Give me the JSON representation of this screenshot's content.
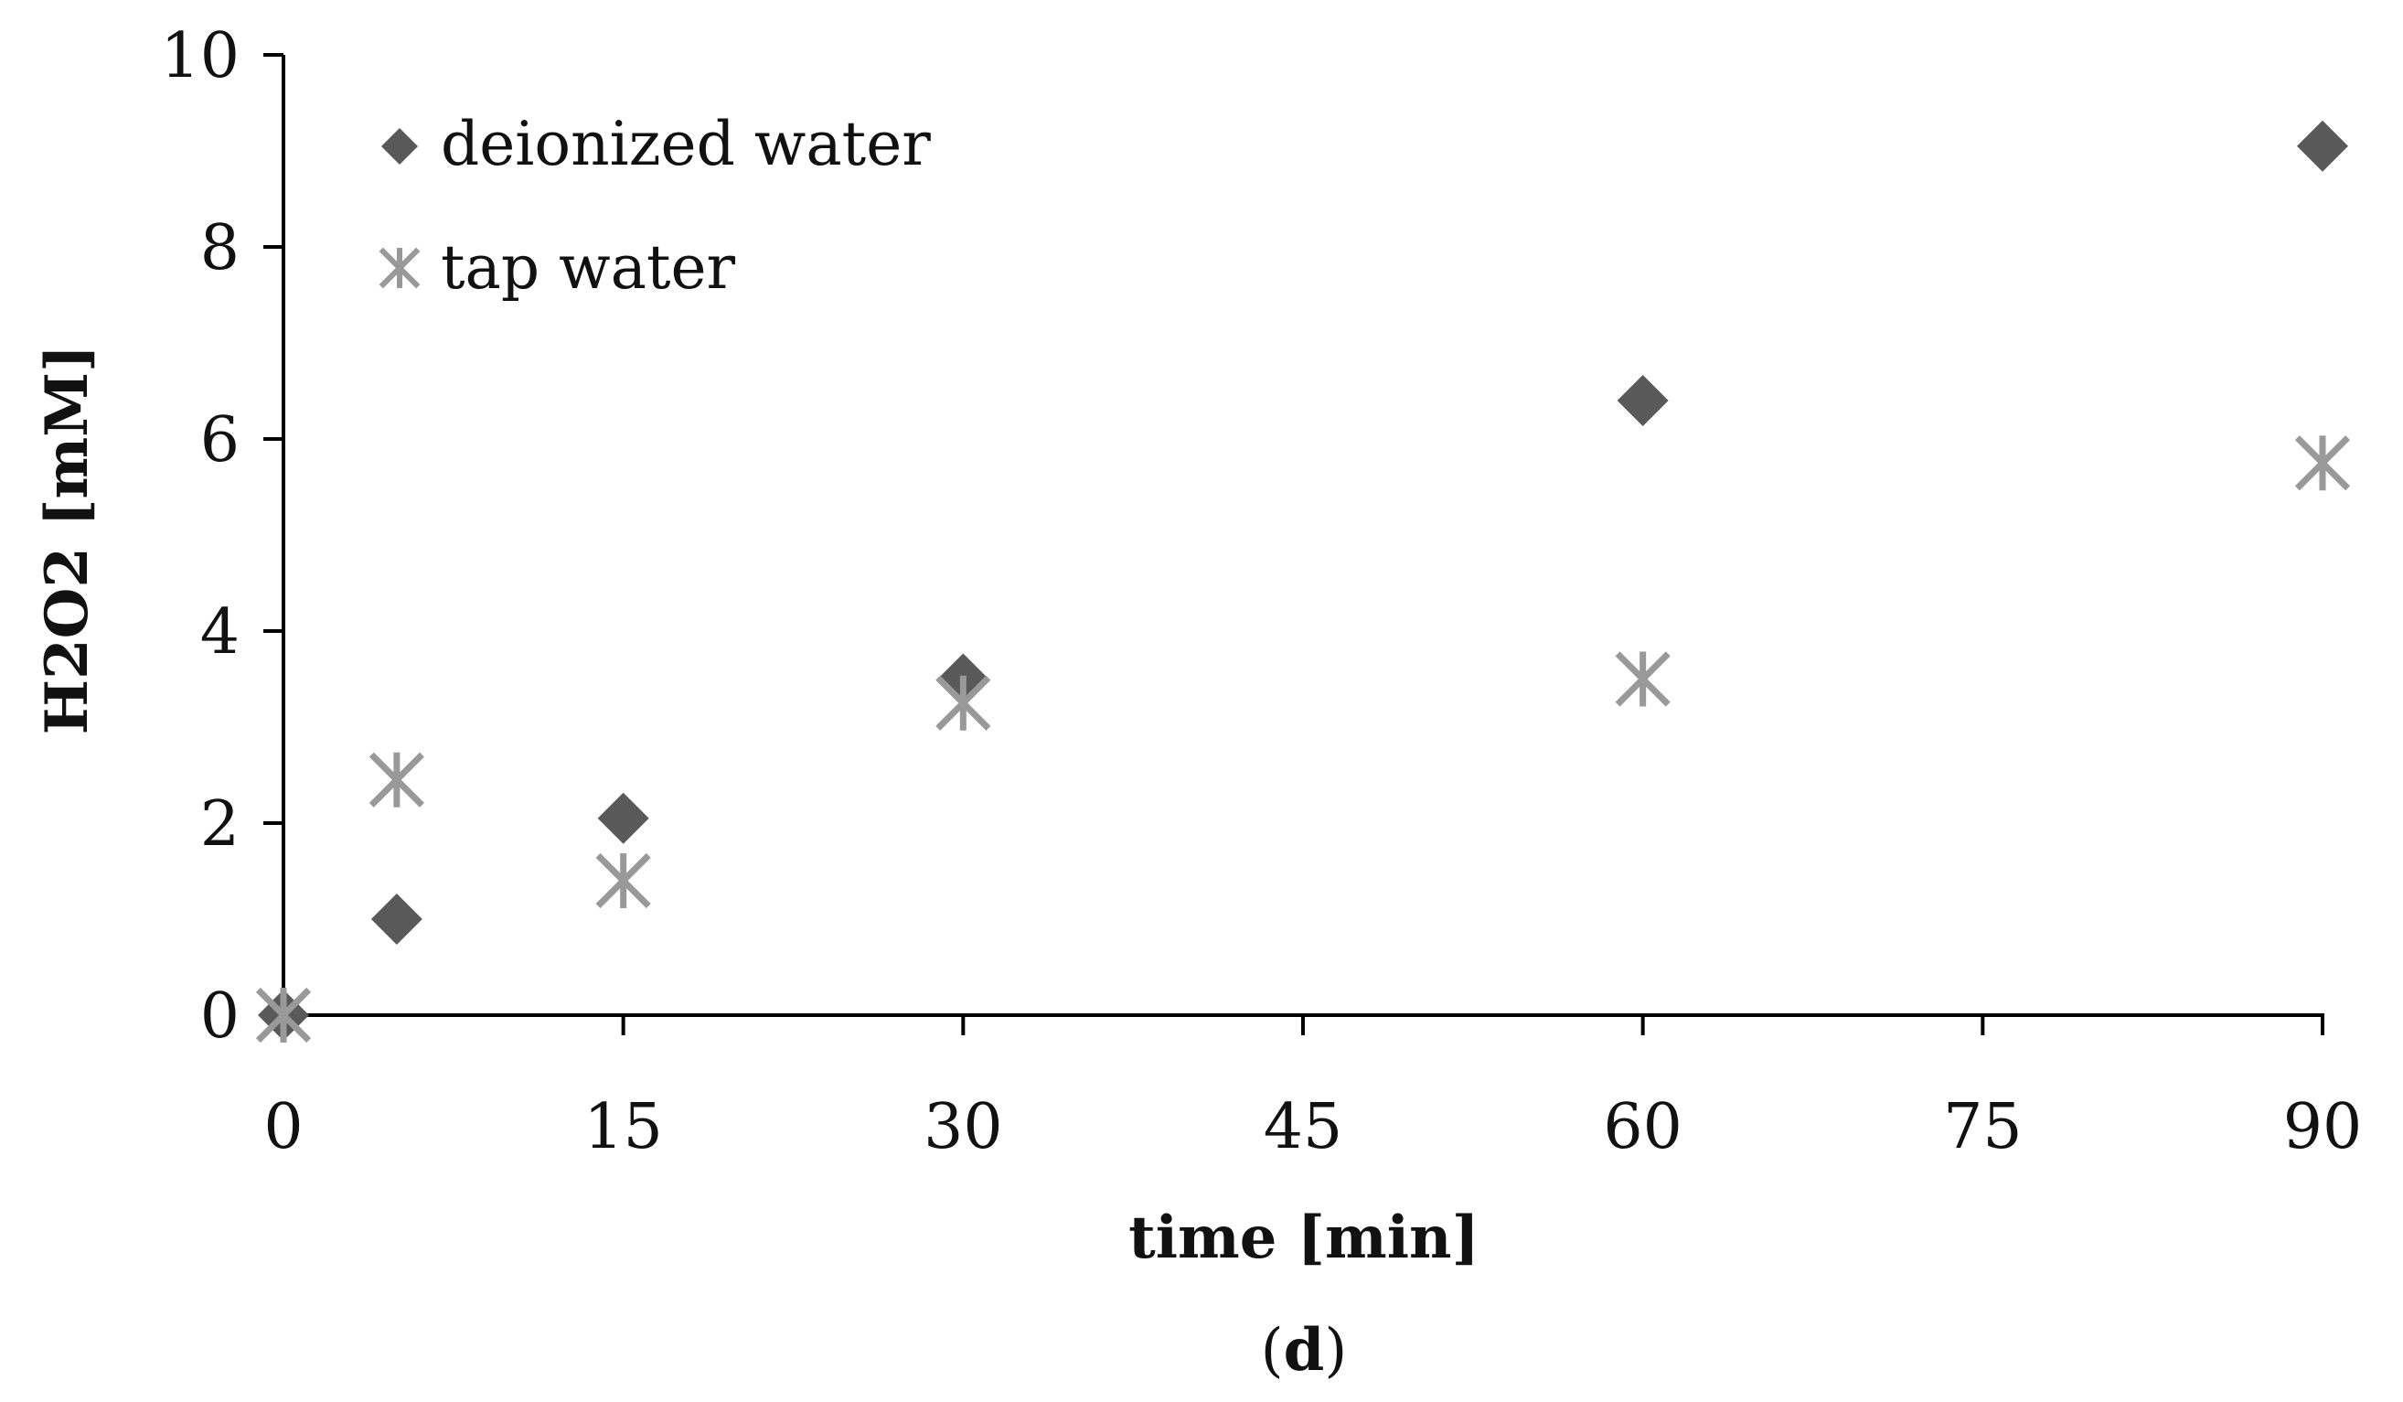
{
  "chart_data": {
    "type": "scatter",
    "title": "",
    "xlabel": "time [min]",
    "ylabel": "H2O2 [mM]",
    "xlim": [
      0,
      90
    ],
    "ylim": [
      0,
      10
    ],
    "x_ticks": [
      0,
      15,
      30,
      45,
      60,
      75,
      90
    ],
    "y_ticks": [
      0,
      2,
      4,
      6,
      8,
      10
    ],
    "grid": false,
    "legend_position": "top-left",
    "series": [
      {
        "name": "deionized water",
        "marker": "diamond",
        "color": "#595959",
        "x": [
          0,
          5,
          15,
          30,
          60,
          90
        ],
        "y": [
          0.0,
          1.0,
          2.05,
          3.5,
          6.4,
          9.05
        ]
      },
      {
        "name": "tap water",
        "marker": "asterisk",
        "color": "#999999",
        "x": [
          0,
          5,
          15,
          30,
          60,
          90
        ],
        "y": [
          0.0,
          2.45,
          1.4,
          3.25,
          3.5,
          5.75
        ]
      }
    ]
  },
  "caption": {
    "open": "(",
    "letter": "d",
    "close": ")"
  }
}
